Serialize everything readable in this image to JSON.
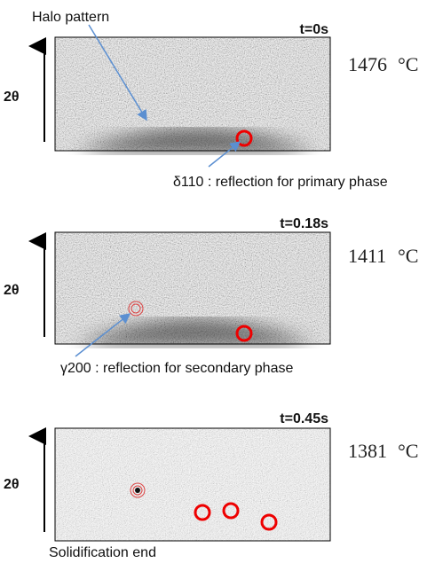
{
  "annotations": {
    "halo": "Halo pattern",
    "delta": "δ110 : reflection for primary phase",
    "gamma": "γ200 : reflection for secondary phase",
    "end": "Solidification end"
  },
  "panels": [
    {
      "time": "t=0s",
      "temperature": "1476",
      "unit": "°C",
      "axis": "2θ"
    },
    {
      "time": "t=0.18s",
      "temperature": "1411",
      "unit": "°C",
      "axis": "2θ"
    },
    {
      "time": "t=0.45s",
      "temperature": "1381",
      "unit": "°C",
      "axis": "2θ"
    }
  ]
}
